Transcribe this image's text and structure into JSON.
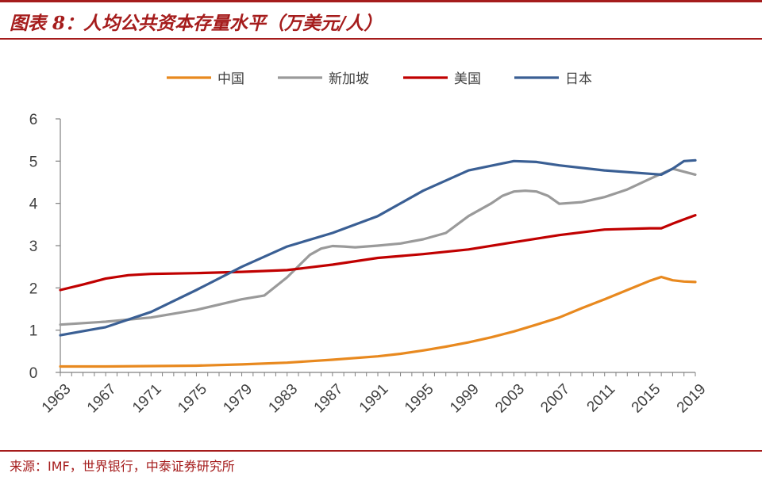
{
  "header": {
    "title": "图表 8：人均公共资本存量水平（万美元/人）"
  },
  "footer": {
    "source": "来源：IMF，世界银行，中泰证券研究所"
  },
  "colors": {
    "accent": "#a51c1c",
    "china": "#e8891f",
    "singapore": "#9a9a9a",
    "usa": "#c00000",
    "japan": "#3a5f94",
    "axis": "#808080",
    "text": "#404040"
  },
  "chart_data": {
    "type": "line",
    "title": "人均公共资本存量水平（万美元/人）",
    "xlabel": "",
    "ylabel": "",
    "xlim": [
      1963,
      2019
    ],
    "ylim": [
      0,
      6
    ],
    "x_ticks": [
      "1963",
      "1967",
      "1971",
      "1975",
      "1979",
      "1983",
      "1987",
      "1991",
      "1995",
      "1999",
      "2003",
      "2007",
      "2011",
      "2015",
      "2019"
    ],
    "y_ticks": [
      "0",
      "1",
      "2",
      "3",
      "4",
      "5",
      "6"
    ],
    "legend_position": "top-center",
    "grid": false,
    "series": [
      {
        "name": "中国",
        "color": "#e8891f",
        "x": [
          1963,
          1967,
          1971,
          1975,
          1979,
          1983,
          1987,
          1991,
          1993,
          1995,
          1997,
          1999,
          2001,
          2003,
          2005,
          2007,
          2009,
          2011,
          2013,
          2015,
          2016,
          2017,
          2018,
          2019
        ],
        "y": [
          0.14,
          0.14,
          0.15,
          0.16,
          0.19,
          0.23,
          0.3,
          0.38,
          0.44,
          0.52,
          0.61,
          0.71,
          0.83,
          0.97,
          1.13,
          1.3,
          1.52,
          1.73,
          1.95,
          2.17,
          2.26,
          2.18,
          2.15,
          2.14
        ]
      },
      {
        "name": "新加坡",
        "color": "#9a9a9a",
        "x": [
          1963,
          1967,
          1971,
          1975,
          1979,
          1981,
          1983,
          1985,
          1986,
          1987,
          1988,
          1989,
          1991,
          1993,
          1995,
          1997,
          1999,
          2001,
          2002,
          2003,
          2004,
          2005,
          2006,
          2007,
          2009,
          2011,
          2013,
          2015,
          2017,
          2019
        ],
        "y": [
          1.13,
          1.2,
          1.3,
          1.48,
          1.73,
          1.82,
          2.25,
          2.78,
          2.93,
          2.99,
          2.98,
          2.96,
          3.0,
          3.05,
          3.15,
          3.3,
          3.7,
          4.0,
          4.18,
          4.28,
          4.3,
          4.28,
          4.18,
          3.99,
          4.03,
          4.15,
          4.33,
          4.58,
          4.82,
          4.68
        ]
      },
      {
        "name": "美国",
        "color": "#c00000",
        "x": [
          1963,
          1965,
          1967,
          1969,
          1971,
          1975,
          1979,
          1983,
          1987,
          1991,
          1995,
          1999,
          2003,
          2007,
          2011,
          2015,
          2016,
          2017,
          2018,
          2019
        ],
        "y": [
          1.95,
          2.08,
          2.22,
          2.3,
          2.33,
          2.35,
          2.38,
          2.42,
          2.55,
          2.71,
          2.8,
          2.91,
          3.08,
          3.25,
          3.38,
          3.41,
          3.41,
          3.52,
          3.62,
          3.72
        ]
      },
      {
        "name": "日本",
        "color": "#3a5f94",
        "x": [
          1963,
          1967,
          1971,
          1975,
          1979,
          1983,
          1987,
          1991,
          1995,
          1999,
          2003,
          2005,
          2007,
          2011,
          2015,
          2016,
          2017,
          2018,
          2019
        ],
        "y": [
          0.88,
          1.07,
          1.43,
          1.95,
          2.5,
          2.98,
          3.3,
          3.7,
          4.3,
          4.78,
          5.0,
          4.98,
          4.9,
          4.78,
          4.7,
          4.68,
          4.82,
          5.0,
          5.02
        ]
      }
    ]
  }
}
